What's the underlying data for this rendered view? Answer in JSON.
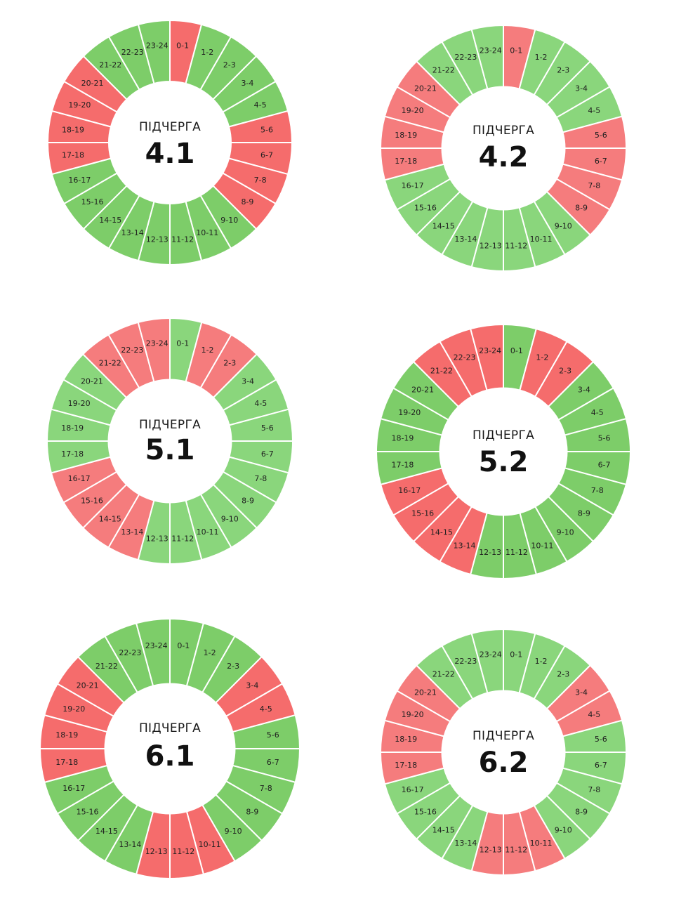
{
  "colors": {
    "on_dark": "#7dcd69",
    "on_light": "#8ad67c",
    "off_dark": "#f56c6c",
    "off_light": "#f57c7d"
  },
  "chart_data": [
    {
      "type": "pie",
      "title": "ПІДЧЕРГА",
      "number": "4.1",
      "categories": [
        "0-1",
        "1-2",
        "2-3",
        "3-4",
        "4-5",
        "5-6",
        "6-7",
        "7-8",
        "8-9",
        "9-10",
        "10-11",
        "11-12",
        "12-13",
        "13-14",
        "14-15",
        "15-16",
        "16-17",
        "17-18",
        "18-19",
        "19-20",
        "20-21",
        "21-22",
        "22-23",
        "23-24"
      ],
      "status": [
        "off",
        "on",
        "on",
        "on",
        "on",
        "off",
        "off",
        "off",
        "off",
        "on",
        "on",
        "on",
        "on",
        "on",
        "on",
        "on",
        "on",
        "off",
        "off",
        "off",
        "off",
        "on",
        "on",
        "on"
      ],
      "tone": "dark"
    },
    {
      "type": "pie",
      "title": "ПІДЧЕРГА",
      "number": "4.2",
      "categories": [
        "0-1",
        "1-2",
        "2-3",
        "3-4",
        "4-5",
        "5-6",
        "6-7",
        "7-8",
        "8-9",
        "9-10",
        "10-11",
        "11-12",
        "12-13",
        "13-14",
        "14-15",
        "15-16",
        "16-17",
        "17-18",
        "18-19",
        "19-20",
        "20-21",
        "21-22",
        "22-23",
        "23-24"
      ],
      "status": [
        "off",
        "on",
        "on",
        "on",
        "on",
        "off",
        "off",
        "off",
        "off",
        "on",
        "on",
        "on",
        "on",
        "on",
        "on",
        "on",
        "on",
        "off",
        "off",
        "off",
        "off",
        "on",
        "on",
        "on"
      ],
      "tone": "light"
    },
    {
      "type": "pie",
      "title": "ПІДЧЕРГА",
      "number": "5.1",
      "categories": [
        "0-1",
        "1-2",
        "2-3",
        "3-4",
        "4-5",
        "5-6",
        "6-7",
        "7-8",
        "8-9",
        "9-10",
        "10-11",
        "11-12",
        "12-13",
        "13-14",
        "14-15",
        "15-16",
        "16-17",
        "17-18",
        "18-19",
        "19-20",
        "20-21",
        "21-22",
        "22-23",
        "23-24"
      ],
      "status": [
        "on",
        "off",
        "off",
        "on",
        "on",
        "on",
        "on",
        "on",
        "on",
        "on",
        "on",
        "on",
        "on",
        "off",
        "off",
        "off",
        "off",
        "on",
        "on",
        "on",
        "on",
        "off",
        "off",
        "off"
      ],
      "tone": "light"
    },
    {
      "type": "pie",
      "title": "ПІДЧЕРГА",
      "number": "5.2",
      "categories": [
        "0-1",
        "1-2",
        "2-3",
        "3-4",
        "4-5",
        "5-6",
        "6-7",
        "7-8",
        "8-9",
        "9-10",
        "10-11",
        "11-12",
        "12-13",
        "13-14",
        "14-15",
        "15-16",
        "16-17",
        "17-18",
        "18-19",
        "19-20",
        "20-21",
        "21-22",
        "22-23",
        "23-24"
      ],
      "status": [
        "on",
        "off",
        "off",
        "on",
        "on",
        "on",
        "on",
        "on",
        "on",
        "on",
        "on",
        "on",
        "on",
        "off",
        "off",
        "off",
        "off",
        "on",
        "on",
        "on",
        "on",
        "off",
        "off",
        "off"
      ],
      "tone": "dark"
    },
    {
      "type": "pie",
      "title": "ПІДЧЕРГА",
      "number": "6.1",
      "categories": [
        "0-1",
        "1-2",
        "2-3",
        "3-4",
        "4-5",
        "5-6",
        "6-7",
        "7-8",
        "8-9",
        "9-10",
        "10-11",
        "11-12",
        "12-13",
        "13-14",
        "14-15",
        "15-16",
        "16-17",
        "17-18",
        "18-19",
        "19-20",
        "20-21",
        "21-22",
        "22-23",
        "23-24"
      ],
      "status": [
        "on",
        "on",
        "on",
        "off",
        "off",
        "on",
        "on",
        "on",
        "on",
        "on",
        "off",
        "off",
        "off",
        "on",
        "on",
        "on",
        "on",
        "off",
        "off",
        "off",
        "off",
        "on",
        "on",
        "on"
      ],
      "tone": "dark"
    },
    {
      "type": "pie",
      "title": "ПІДЧЕРГА",
      "number": "6.2",
      "categories": [
        "0-1",
        "1-2",
        "2-3",
        "3-4",
        "4-5",
        "5-6",
        "6-7",
        "7-8",
        "8-9",
        "9-10",
        "10-11",
        "11-12",
        "12-13",
        "13-14",
        "14-15",
        "15-16",
        "16-17",
        "17-18",
        "18-19",
        "19-20",
        "20-21",
        "21-22",
        "22-23",
        "23-24"
      ],
      "status": [
        "on",
        "on",
        "on",
        "off",
        "off",
        "on",
        "on",
        "on",
        "on",
        "on",
        "off",
        "off",
        "off",
        "on",
        "on",
        "on",
        "on",
        "off",
        "off",
        "off",
        "off",
        "on",
        "on",
        "on"
      ],
      "tone": "light"
    }
  ]
}
